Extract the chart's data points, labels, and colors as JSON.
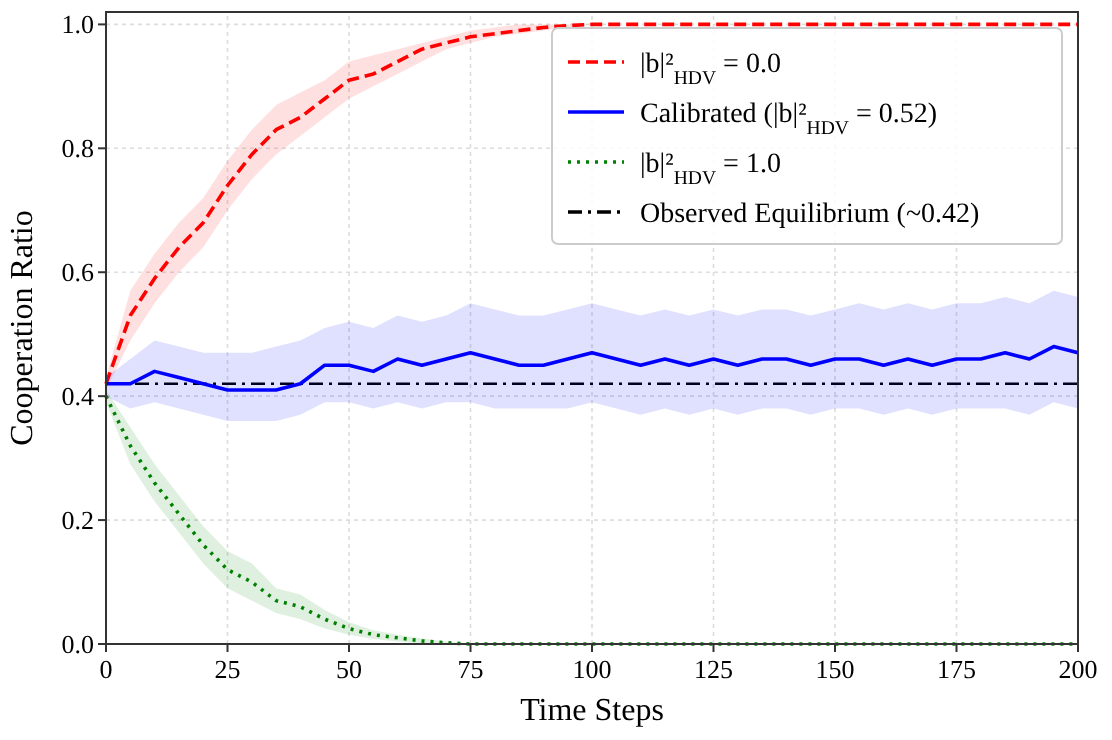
{
  "chart_data": {
    "type": "line",
    "xlabel": "Time Steps",
    "ylabel": "Cooperation Ratio",
    "x": [
      0,
      5,
      10,
      15,
      20,
      25,
      30,
      35,
      40,
      45,
      50,
      55,
      60,
      65,
      70,
      75,
      80,
      85,
      90,
      95,
      100,
      105,
      110,
      115,
      120,
      125,
      130,
      135,
      140,
      145,
      150,
      155,
      160,
      165,
      170,
      175,
      180,
      185,
      190,
      195,
      200
    ],
    "series": [
      {
        "name": "|b|²$_{HDV}$ = 0.0",
        "color": "#ff0000",
        "line_style": "dashed",
        "values": [
          0.42,
          0.53,
          0.59,
          0.64,
          0.68,
          0.74,
          0.79,
          0.83,
          0.85,
          0.88,
          0.91,
          0.92,
          0.94,
          0.96,
          0.97,
          0.98,
          0.985,
          0.99,
          0.995,
          0.998,
          1.0,
          1.0,
          1.0,
          1.0,
          1.0,
          1.0,
          1.0,
          1.0,
          1.0,
          1.0,
          1.0,
          1.0,
          1.0,
          1.0,
          1.0,
          1.0,
          1.0,
          1.0,
          1.0,
          1.0,
          1.0
        ],
        "lower": [
          0.41,
          0.49,
          0.55,
          0.6,
          0.64,
          0.7,
          0.75,
          0.79,
          0.82,
          0.85,
          0.88,
          0.9,
          0.92,
          0.94,
          0.96,
          0.97,
          0.98,
          0.985,
          0.99,
          0.995,
          1.0,
          1.0,
          1.0,
          1.0,
          1.0,
          1.0,
          1.0,
          1.0,
          1.0,
          1.0,
          1.0,
          1.0,
          1.0,
          1.0,
          1.0,
          1.0,
          1.0,
          1.0,
          1.0,
          1.0,
          1.0
        ],
        "upper": [
          0.43,
          0.57,
          0.63,
          0.68,
          0.72,
          0.78,
          0.83,
          0.87,
          0.89,
          0.91,
          0.94,
          0.95,
          0.96,
          0.97,
          0.98,
          0.99,
          0.995,
          1.0,
          1.0,
          1.0,
          1.0,
          1.0,
          1.0,
          1.0,
          1.0,
          1.0,
          1.0,
          1.0,
          1.0,
          1.0,
          1.0,
          1.0,
          1.0,
          1.0,
          1.0,
          1.0,
          1.0,
          1.0,
          1.0,
          1.0,
          1.0
        ]
      },
      {
        "name": "Calibrated (|b|²$_{HDV}$ = 0.52)",
        "color": "#0000ff",
        "line_style": "solid",
        "values": [
          0.42,
          0.42,
          0.44,
          0.43,
          0.42,
          0.41,
          0.41,
          0.41,
          0.42,
          0.45,
          0.45,
          0.44,
          0.46,
          0.45,
          0.46,
          0.47,
          0.46,
          0.45,
          0.45,
          0.46,
          0.47,
          0.46,
          0.45,
          0.46,
          0.45,
          0.46,
          0.45,
          0.46,
          0.46,
          0.45,
          0.46,
          0.46,
          0.45,
          0.46,
          0.45,
          0.46,
          0.46,
          0.47,
          0.46,
          0.48,
          0.47
        ],
        "lower": [
          0.4,
          0.38,
          0.39,
          0.38,
          0.37,
          0.36,
          0.36,
          0.36,
          0.37,
          0.39,
          0.39,
          0.38,
          0.39,
          0.38,
          0.39,
          0.39,
          0.38,
          0.38,
          0.38,
          0.38,
          0.39,
          0.38,
          0.37,
          0.38,
          0.37,
          0.38,
          0.37,
          0.38,
          0.38,
          0.37,
          0.38,
          0.38,
          0.37,
          0.38,
          0.37,
          0.38,
          0.38,
          0.38,
          0.37,
          0.39,
          0.38
        ],
        "upper": [
          0.43,
          0.46,
          0.49,
          0.48,
          0.47,
          0.47,
          0.47,
          0.48,
          0.49,
          0.51,
          0.52,
          0.51,
          0.53,
          0.52,
          0.53,
          0.55,
          0.54,
          0.53,
          0.53,
          0.54,
          0.55,
          0.54,
          0.53,
          0.54,
          0.53,
          0.54,
          0.53,
          0.54,
          0.54,
          0.53,
          0.54,
          0.55,
          0.54,
          0.55,
          0.54,
          0.55,
          0.55,
          0.56,
          0.55,
          0.57,
          0.56
        ]
      },
      {
        "name": "|b|²$_{HDV}$ = 1.0",
        "color": "#008000",
        "line_style": "dotted",
        "values": [
          0.4,
          0.32,
          0.26,
          0.21,
          0.16,
          0.12,
          0.1,
          0.07,
          0.06,
          0.04,
          0.025,
          0.015,
          0.01,
          0.005,
          0.002,
          0,
          0,
          0,
          0,
          0,
          0,
          0,
          0,
          0,
          0,
          0,
          0,
          0,
          0,
          0,
          0,
          0,
          0,
          0,
          0,
          0,
          0,
          0,
          0,
          0,
          0
        ],
        "lower": [
          0.39,
          0.29,
          0.23,
          0.18,
          0.13,
          0.09,
          0.07,
          0.05,
          0.04,
          0.025,
          0.015,
          0.008,
          0.004,
          0.001,
          0,
          0,
          0,
          0,
          0,
          0,
          0,
          0,
          0,
          0,
          0,
          0,
          0,
          0,
          0,
          0,
          0,
          0,
          0,
          0,
          0,
          0,
          0,
          0,
          0,
          0,
          0
        ],
        "upper": [
          0.41,
          0.35,
          0.29,
          0.24,
          0.19,
          0.15,
          0.13,
          0.09,
          0.08,
          0.055,
          0.035,
          0.022,
          0.015,
          0.009,
          0.004,
          0,
          0,
          0,
          0,
          0,
          0,
          0,
          0,
          0,
          0,
          0,
          0,
          0,
          0,
          0,
          0,
          0,
          0,
          0,
          0,
          0,
          0,
          0,
          0,
          0,
          0
        ]
      }
    ],
    "ref_lines": [
      {
        "axis": "y",
        "value": 0.42,
        "label": "Observed Equilibrium (~0.42)",
        "color": "#000000",
        "line_style": "dashdot"
      }
    ],
    "xlim": [
      0,
      200
    ],
    "xticks": [
      0,
      25,
      50,
      75,
      100,
      125,
      150,
      175,
      200
    ],
    "ylim": [
      0,
      1.02
    ],
    "yticks": [
      {
        "value": 0,
        "label": "0.0"
      },
      0.2,
      0.4,
      0.6,
      0.8,
      {
        "value": 1,
        "label": "1.0"
      }
    ],
    "grid": true,
    "legend": "top right"
  }
}
